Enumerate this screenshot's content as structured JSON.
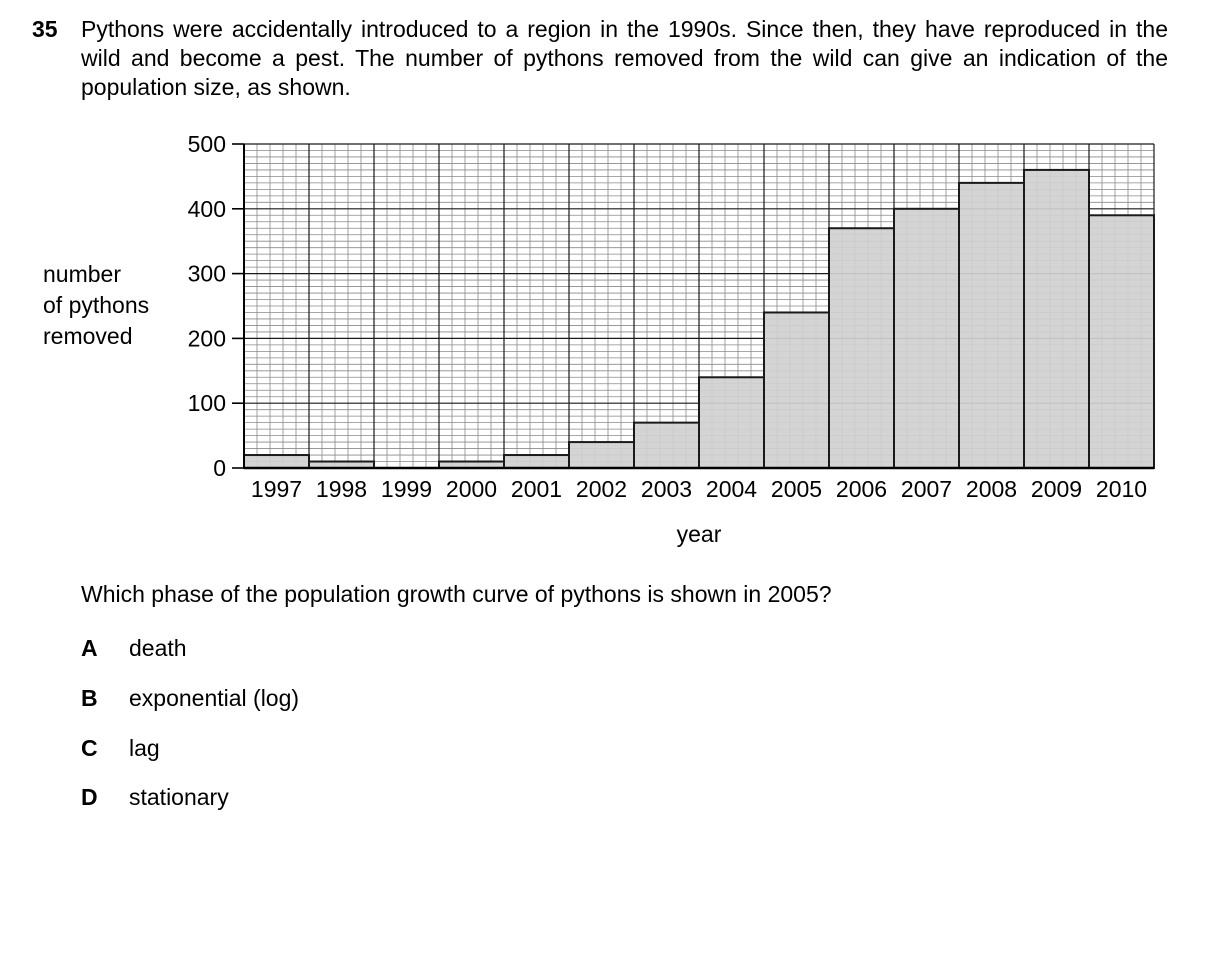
{
  "question": {
    "number": "35",
    "stem": "Pythons were accidentally introduced to a region in the 1990s. Since then, they have reproduced in the wild and become a pest. The number of pythons removed from the wild can give an indication of the population size, as shown.",
    "prompt": "Which phase of the population growth curve of pythons is shown in 2005?",
    "options": [
      {
        "letter": "A",
        "text": "death"
      },
      {
        "letter": "B",
        "text": "exponential (log)"
      },
      {
        "letter": "C",
        "text": "lag"
      },
      {
        "letter": "D",
        "text": "stationary"
      }
    ]
  },
  "chart_data": {
    "type": "bar",
    "categories": [
      "1997",
      "1998",
      "1999",
      "2000",
      "2001",
      "2002",
      "2003",
      "2004",
      "2005",
      "2006",
      "2007",
      "2008",
      "2009",
      "2010"
    ],
    "values": [
      20,
      10,
      0,
      10,
      20,
      40,
      70,
      140,
      240,
      370,
      400,
      440,
      460,
      390
    ],
    "xlabel": "year",
    "ylabel_lines": [
      "number",
      "of pythons",
      "removed"
    ],
    "ylim": [
      0,
      500
    ],
    "yticks": [
      0,
      100,
      200,
      300,
      400,
      500
    ],
    "grid": true,
    "colors": {
      "bar_fill": "#d0d0d0",
      "bar_edge": "#1a1a1a",
      "grid_minor": "#8a8a8a",
      "grid_major": "#1a1a1a"
    }
  }
}
